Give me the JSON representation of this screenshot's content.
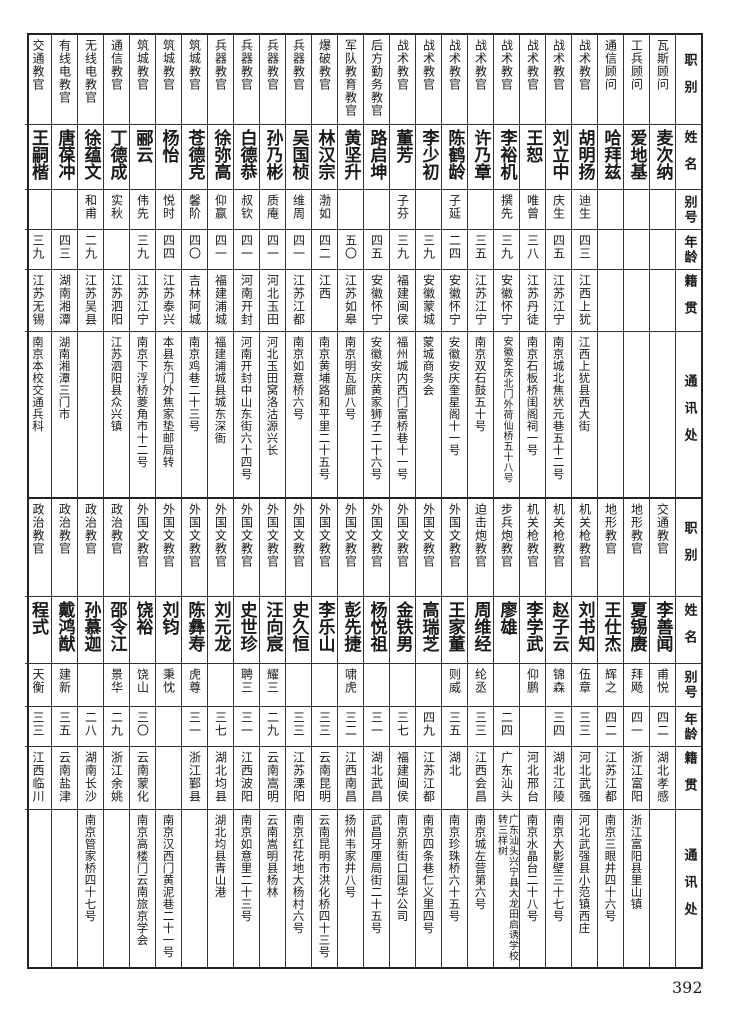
{
  "header": [
    "职别",
    "姓名",
    "别号",
    "年龄",
    "籍贯",
    "通讯处"
  ],
  "top_rows": [
    {
      "title": "瓦斯顾问",
      "name": "麦次纳",
      "alias": "",
      "age": "",
      "native": "",
      "address": ""
    },
    {
      "title": "工兵顾问",
      "name": "爱地基",
      "alias": "",
      "age": "",
      "native": "",
      "address": ""
    },
    {
      "title": "通信顾问",
      "name": "哈拜兹",
      "alias": "",
      "age": "",
      "native": "",
      "address": ""
    },
    {
      "title": "战术教官",
      "name": "胡明扬",
      "alias": "迪生",
      "age": "四三",
      "native": "江西上犹",
      "address": "江西上犹县西大街"
    },
    {
      "title": "战术教官",
      "name": "刘立中",
      "alias": "庆生",
      "age": "四五",
      "native": "江苏江宁",
      "address": "南京城北焦状元巷五十二号"
    },
    {
      "title": "战术教官",
      "name": "王恕",
      "alias": "唯曾",
      "age": "三八",
      "native": "江苏丹徒",
      "address": "南京石板桥闺阁祠一号"
    },
    {
      "title": "战术教官",
      "name": "李裕机",
      "alias": "撰先",
      "age": "三九",
      "native": "安徽怀宁",
      "address": "安徽安庆北门外荷仙桥五十八号"
    },
    {
      "title": "战术教官",
      "name": "许乃章",
      "alias": "",
      "age": "三五",
      "native": "江苏江宁",
      "address": "南京双石鼓五十号"
    },
    {
      "title": "战术教官",
      "name": "陈鹤龄",
      "alias": "子延",
      "age": "二四",
      "native": "安徽怀宁",
      "address": "安徽安庆奎星阁十一号"
    },
    {
      "title": "战术教官",
      "name": "李少初",
      "alias": "",
      "age": "三九",
      "native": "安徽蒙城",
      "address": "蒙城商务会"
    },
    {
      "title": "战术教官",
      "name": "董芳",
      "alias": "子芬",
      "age": "三九",
      "native": "福建闽侯",
      "address": "福州城内西门富桥巷十一号"
    },
    {
      "title": "后方勤务教官",
      "name": "路启坤",
      "alias": "",
      "age": "四五",
      "native": "安徽怀宁",
      "address": "安徽安庆黄家狮子二十六号"
    },
    {
      "title": "军队教育教官",
      "name": "黄坚升",
      "alias": "",
      "age": "五〇",
      "native": "江苏如皋",
      "address": "南京明瓦廊八号"
    },
    {
      "title": "爆破教官",
      "name": "林汉宗",
      "alias": "渤如",
      "age": "四二",
      "native": "江西",
      "address": "南京黄埔路和平里二十五号"
    },
    {
      "title": "兵器教官",
      "name": "吴国桢",
      "alias": "维周",
      "age": "四一",
      "native": "江苏江都",
      "address": "南京如意桥六号"
    },
    {
      "title": "兵器教官",
      "name": "孙乃彬",
      "alias": "质庵",
      "age": "四一",
      "native": "河北玉田",
      "address": "河北玉田窝洛沽源兴长"
    },
    {
      "title": "兵器教官",
      "name": "白德恭",
      "alias": "叔钦",
      "age": "四一",
      "native": "河南开封",
      "address": "河南开封中山东街六十四号"
    },
    {
      "title": "兵器教官",
      "name": "徐弥高",
      "alias": "仰嬴",
      "age": "四一",
      "native": "福建浦城",
      "address": "福建浦城县城东深衙"
    },
    {
      "title": "筑城教官",
      "name": "苍德克",
      "alias": "馨阶",
      "age": "四〇",
      "native": "吉林阿城",
      "address": "南京鸡巷二十三号"
    },
    {
      "title": "筑城教官",
      "name": "杨怡",
      "alias": "悦时",
      "age": "四四",
      "native": "江苏泰兴",
      "address": "本县东门外焦家垫邮局转"
    },
    {
      "title": "筑城教官",
      "name": "郦云",
      "alias": "伟先",
      "age": "三九",
      "native": "江苏江宁",
      "address": "南京下浮桥菱角市十二号"
    },
    {
      "title": "通信教官",
      "name": "丁德成",
      "alias": "实秋",
      "age": "",
      "native": "江苏泗阳",
      "address": "江苏泗阳县众兴镇"
    },
    {
      "title": "无线电教官",
      "name": "徐蕴文",
      "alias": "和甫",
      "age": "二九",
      "native": "江苏吴县",
      "address": ""
    },
    {
      "title": "有线电教官",
      "name": "唐葆冲",
      "alias": "",
      "age": "四三",
      "native": "湖南湘潭",
      "address": "湖南湘潭三门市"
    },
    {
      "title": "交通教官",
      "name": "王嗣楷",
      "alias": "",
      "age": "三九",
      "native": "江苏无锡",
      "address": "南京本校交通兵科"
    }
  ],
  "bottom_rows": [
    {
      "title": "交通教官",
      "name": "李善闻",
      "alias": "甫悦",
      "age": "四二",
      "native": "湖北孝感",
      "address": ""
    },
    {
      "title": "地形教官",
      "name": "夏锡赓",
      "alias": "拜飏",
      "age": "四一",
      "native": "浙江富阳",
      "address": "浙江富阳县里山镇"
    },
    {
      "title": "地形教官",
      "name": "王仕杰",
      "alias": "辉之",
      "age": "四二",
      "native": "江苏江都",
      "address": "南京三眼井四十六号"
    },
    {
      "title": "机关枪教官",
      "name": "刘书知",
      "alias": "伍章",
      "age": "三三",
      "native": "河北武强",
      "address": "河北武强县小范镇西庄"
    },
    {
      "title": "机关枪教官",
      "name": "赵子云",
      "alias": "锦森",
      "age": "三四",
      "native": "湖北江陵",
      "address": "南京大影壁三十七号"
    },
    {
      "title": "机关枪教官",
      "name": "李学武",
      "alias": "仰鹏",
      "age": "",
      "native": "河北邢台",
      "address": "南京水晶台二十八号"
    },
    {
      "title": "步兵炮教官",
      "name": "廖雄",
      "alias": "",
      "age": "二四",
      "native": "广东汕头",
      "address": "广东汕头兴宁县大龙田启诱学校转三样树"
    },
    {
      "title": "迫击炮教官",
      "name": "周维经",
      "alias": "纶丞",
      "age": "三三",
      "native": "江西会昌",
      "address": "南京城左营第六号"
    },
    {
      "title": "外国文教官",
      "name": "王家董",
      "alias": "则威",
      "age": "三五",
      "native": "湖北",
      "address": "南京珍珠桥六十五号"
    },
    {
      "title": "外国文教官",
      "name": "高瑞芝",
      "alias": "",
      "age": "四九",
      "native": "江苏江都",
      "address": "南京四条巷仁义里四号"
    },
    {
      "title": "外国文教官",
      "name": "金铁男",
      "alias": "",
      "age": "三七",
      "native": "福建闽侯",
      "address": "南京新街口国华公司"
    },
    {
      "title": "外国文教官",
      "name": "杨悦祖",
      "alias": "",
      "age": "三一",
      "native": "湖北武昌",
      "address": "武昌牙厘局街二十五号"
    },
    {
      "title": "外国文教官",
      "name": "彭先捷",
      "alias": "啸虎",
      "age": "三二",
      "native": "江西南昌",
      "address": "扬州韦家井八号"
    },
    {
      "title": "外国文教官",
      "name": "李乐山",
      "alias": "",
      "age": "三三",
      "native": "云南昆明",
      "address": "云南昆明市洪化桥四十三号"
    },
    {
      "title": "外国文教官",
      "name": "史久恒",
      "alias": "",
      "age": "三三",
      "native": "江苏溧阳",
      "address": "南京红花地大杨村六号"
    },
    {
      "title": "外国文教官",
      "name": "汪向宸",
      "alias": "耀三",
      "age": "二九",
      "native": "云南嵩明",
      "address": "云南嵩明县杨林"
    },
    {
      "title": "外国文教官",
      "name": "史世珍",
      "alias": "聘三",
      "age": "三一",
      "native": "江西波阳",
      "address": "南京如意里二十三号"
    },
    {
      "title": "外国文教官",
      "name": "刘元龙",
      "alias": "",
      "age": "三七",
      "native": "湖北均县",
      "address": "湖北均县青山港"
    },
    {
      "title": "外国文教官",
      "name": "陈彝寿",
      "alias": "虎尊",
      "age": "三一",
      "native": "浙江鄞县",
      "address": ""
    },
    {
      "title": "外国文教官",
      "name": "刘钧",
      "alias": "秉忱",
      "age": "",
      "native": "",
      "address": "南京汉西门黄泥巷二十一号"
    },
    {
      "title": "外国文教官",
      "name": "饶裕",
      "alias": "饶山",
      "age": "三〇",
      "native": "云南蒙化",
      "address": "南京高楼门云南旅京学会"
    },
    {
      "title": "政治教官",
      "name": "邵令江",
      "alias": "景华",
      "age": "二九",
      "native": "浙江余姚",
      "address": ""
    },
    {
      "title": "政治教官",
      "name": "孙慕迦",
      "alias": "",
      "age": "二八",
      "native": "湖南长沙",
      "address": "南京管家桥四十七号"
    },
    {
      "title": "政治教官",
      "name": "戴鸿猷",
      "alias": "建新",
      "age": "三五",
      "native": "云南盐津",
      "address": ""
    },
    {
      "title": "政治教官",
      "name": "程式",
      "alias": "天衡",
      "age": "三三",
      "native": "江西临川",
      "address": ""
    }
  ],
  "page_number": "392"
}
